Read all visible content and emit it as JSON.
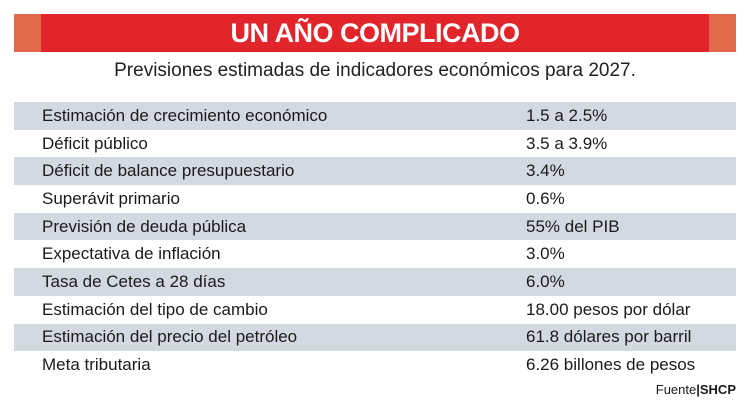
{
  "banner": {
    "title": "UN AÑO COMPLICADO",
    "color": "#e2252b",
    "cap_color": "#e06a4a"
  },
  "subtitle": "Previsiones estimadas de indicadores económicos para 2027.",
  "rows": [
    {
      "label": "Estimación de crecimiento económico",
      "value": "1.5 a 2.5%"
    },
    {
      "label": "Déficit público",
      "value": "3.5 a 3.9%"
    },
    {
      "label": "Déficit de balance presupuestario",
      "value": "3.4%"
    },
    {
      "label": "Superávit primario",
      "value": "0.6%"
    },
    {
      "label": "Previsión de deuda pública",
      "value": "55% del PIB"
    },
    {
      "label": "Expectativa de inflación",
      "value": "3.0%"
    },
    {
      "label": "Tasa de Cetes a 28 días",
      "value": "6.0%"
    },
    {
      "label": "Estimación del tipo de cambio",
      "value": "18.00 pesos por dólar"
    },
    {
      "label": "Estimación del precio del petróleo",
      "value": "61.8 dólares por barril"
    },
    {
      "label": "Meta tributaria",
      "value": "6.26 billones de pesos"
    }
  ],
  "source": {
    "label": "Fuente",
    "separator": "|",
    "org": "SHCP"
  },
  "colors": {
    "stripe": "#d3d9e2"
  }
}
